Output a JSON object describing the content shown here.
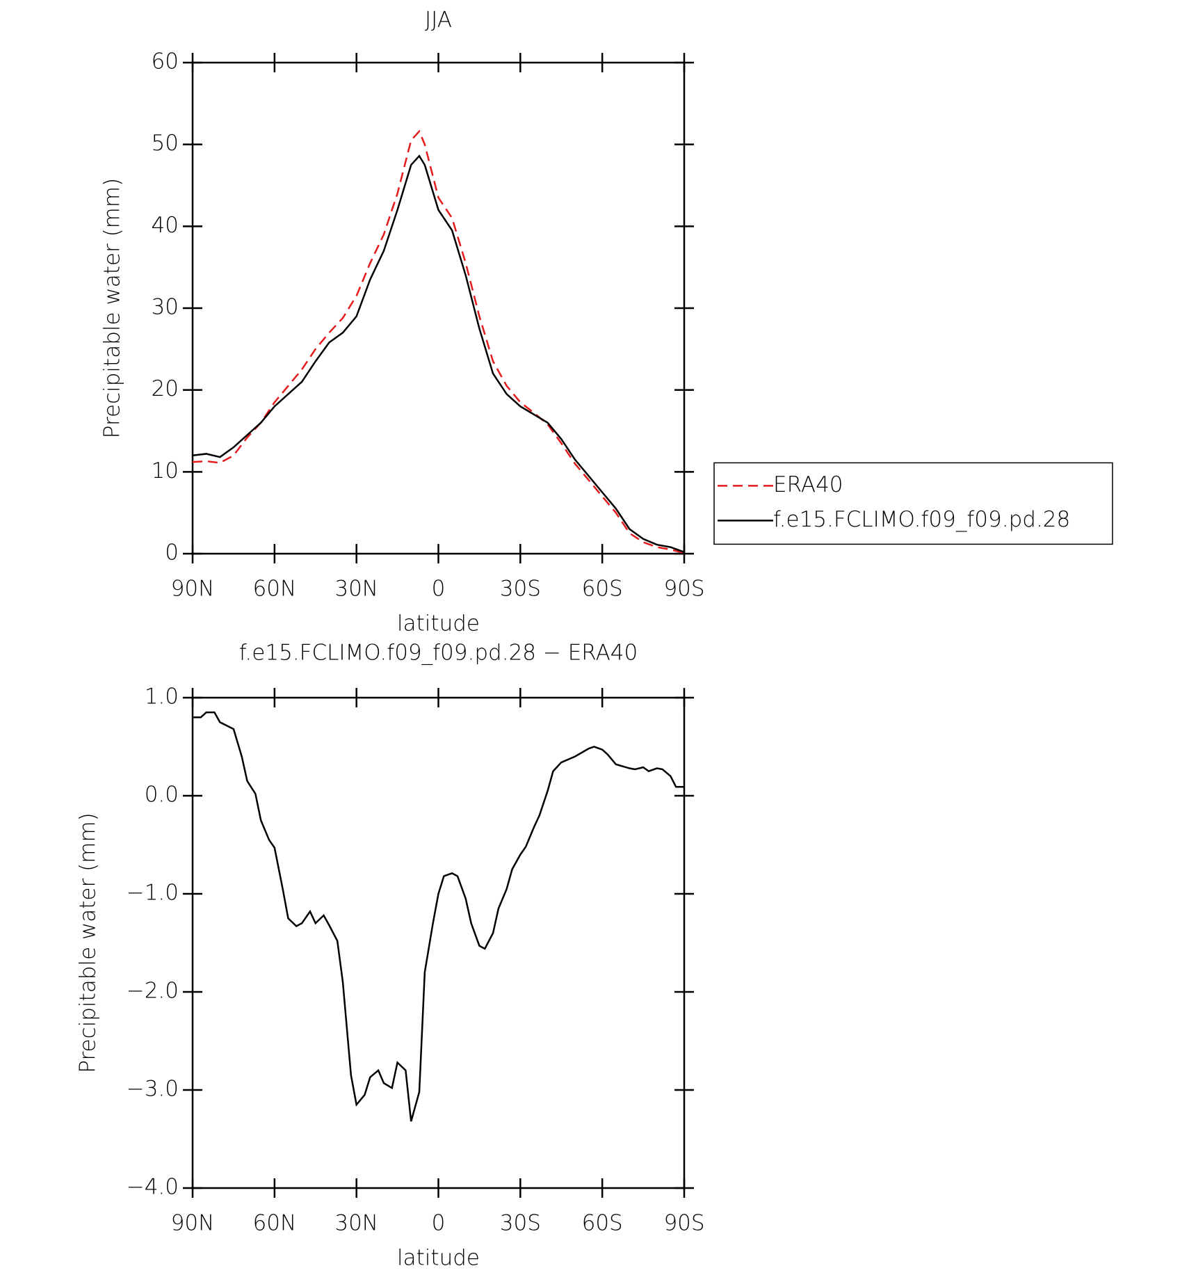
{
  "chart_data": [
    {
      "type": "line",
      "title": "JJA",
      "xlabel": "latitude",
      "ylabel": "Precipitable water (mm)",
      "x": [
        90,
        85,
        80,
        75,
        70,
        65,
        60,
        55,
        50,
        45,
        40,
        35,
        30,
        25,
        20,
        15,
        10,
        7,
        5,
        0,
        -5,
        -10,
        -15,
        -20,
        -25,
        -30,
        -35,
        -40,
        -45,
        -50,
        -55,
        -60,
        -65,
        -70,
        -75,
        -80,
        -85,
        -90
      ],
      "xlim": [
        90,
        -90
      ],
      "xticks": [
        {
          "value": 90,
          "label": "90N"
        },
        {
          "value": 60,
          "label": "60N"
        },
        {
          "value": 30,
          "label": "30N"
        },
        0,
        {
          "value": -30,
          "label": "30S"
        },
        {
          "value": -60,
          "label": "60S"
        },
        {
          "value": -90,
          "label": "90S"
        }
      ],
      "ylim": [
        0,
        60
      ],
      "yticks": [
        0,
        10,
        20,
        30,
        40,
        50,
        60
      ],
      "legend": "right",
      "series": [
        {
          "name": "ERA40",
          "color": "#e41a1c",
          "linestyle": "dashed",
          "values": [
            11.2,
            11.3,
            11.1,
            12,
            14.2,
            16,
            18.5,
            20.5,
            22.5,
            25,
            27,
            28.8,
            31.5,
            35.5,
            39,
            44,
            50.5,
            51.6,
            50,
            43.5,
            41,
            35.5,
            29,
            23.5,
            20.5,
            18.5,
            17.2,
            15.8,
            13.5,
            11,
            9,
            7,
            5,
            2.5,
            1.4,
            0.8,
            0.5,
            0.1
          ]
        },
        {
          "name": "f.e15.FCLIMO.f09_f09.pd.28",
          "color": "#000000",
          "linestyle": "solid",
          "values": [
            12,
            12.2,
            11.8,
            13,
            14.5,
            16,
            18,
            19.5,
            21,
            23.5,
            25.8,
            27,
            29,
            33.5,
            37,
            42,
            47.5,
            48.6,
            47.5,
            42,
            39.5,
            34,
            27.5,
            22,
            19.5,
            18,
            17,
            16,
            14,
            11.5,
            9.5,
            7.5,
            5.5,
            3,
            1.8,
            1.1,
            0.8,
            0.2
          ]
        }
      ]
    },
    {
      "type": "line",
      "title": "f.e15.FCLIMO.f09_f09.pd.28 − ERA40",
      "xlabel": "latitude",
      "ylabel": "Precipitable water (mm)",
      "x": [
        90,
        87,
        85,
        82,
        80,
        75,
        72,
        70,
        67,
        65,
        62,
        60,
        57,
        55,
        52,
        50,
        47,
        45,
        42,
        40,
        37,
        35,
        32,
        30,
        27,
        25,
        22,
        20,
        17,
        15,
        12,
        10,
        7,
        5,
        2,
        0,
        -2,
        -5,
        -7,
        -10,
        -12,
        -15,
        -17,
        -20,
        -22,
        -25,
        -27,
        -30,
        -32,
        -35,
        -37,
        -40,
        -42,
        -45,
        -50,
        -55,
        -57,
        -60,
        -62,
        -65,
        -70,
        -72,
        -75,
        -77,
        -80,
        -82,
        -85,
        -87,
        -90
      ],
      "xlim": [
        90,
        -90
      ],
      "xticks": [
        {
          "value": 90,
          "label": "90N"
        },
        {
          "value": 60,
          "label": "60N"
        },
        {
          "value": 30,
          "label": "30N"
        },
        0,
        {
          "value": -30,
          "label": "30S"
        },
        {
          "value": -60,
          "label": "60S"
        },
        {
          "value": -90,
          "label": "90S"
        }
      ],
      "ylim": [
        -4,
        1
      ],
      "yticks": [
        {
          "value": -4,
          "label": "−4.0"
        },
        {
          "value": -3,
          "label": "−3.0"
        },
        {
          "value": -2,
          "label": "−2.0"
        },
        {
          "value": -1,
          "label": "−1.0"
        },
        {
          "value": 0,
          "label": "0.0"
        },
        {
          "value": 1,
          "label": "1.0"
        }
      ],
      "series": [
        {
          "color": "#000000",
          "linestyle": "solid",
          "values": [
            0.8,
            0.8,
            0.85,
            0.85,
            0.75,
            0.68,
            0.4,
            0.15,
            0.02,
            -0.25,
            -0.45,
            -0.53,
            -0.95,
            -1.25,
            -1.33,
            -1.3,
            -1.18,
            -1.3,
            -1.22,
            -1.32,
            -1.48,
            -1.9,
            -2.85,
            -3.15,
            -3.05,
            -2.87,
            -2.8,
            -2.93,
            -2.98,
            -2.72,
            -2.8,
            -3.32,
            -3.02,
            -1.8,
            -1.3,
            -1.0,
            -0.82,
            -0.79,
            -0.82,
            -1.05,
            -1.3,
            -1.53,
            -1.56,
            -1.4,
            -1.15,
            -0.95,
            -0.75,
            -0.6,
            -0.52,
            -0.32,
            -0.2,
            0.05,
            0.25,
            0.34,
            0.4,
            0.48,
            0.5,
            0.47,
            0.42,
            0.32,
            0.28,
            0.27,
            0.29,
            0.25,
            0.28,
            0.27,
            0.2,
            0.09,
            0.09
          ]
        }
      ]
    }
  ]
}
